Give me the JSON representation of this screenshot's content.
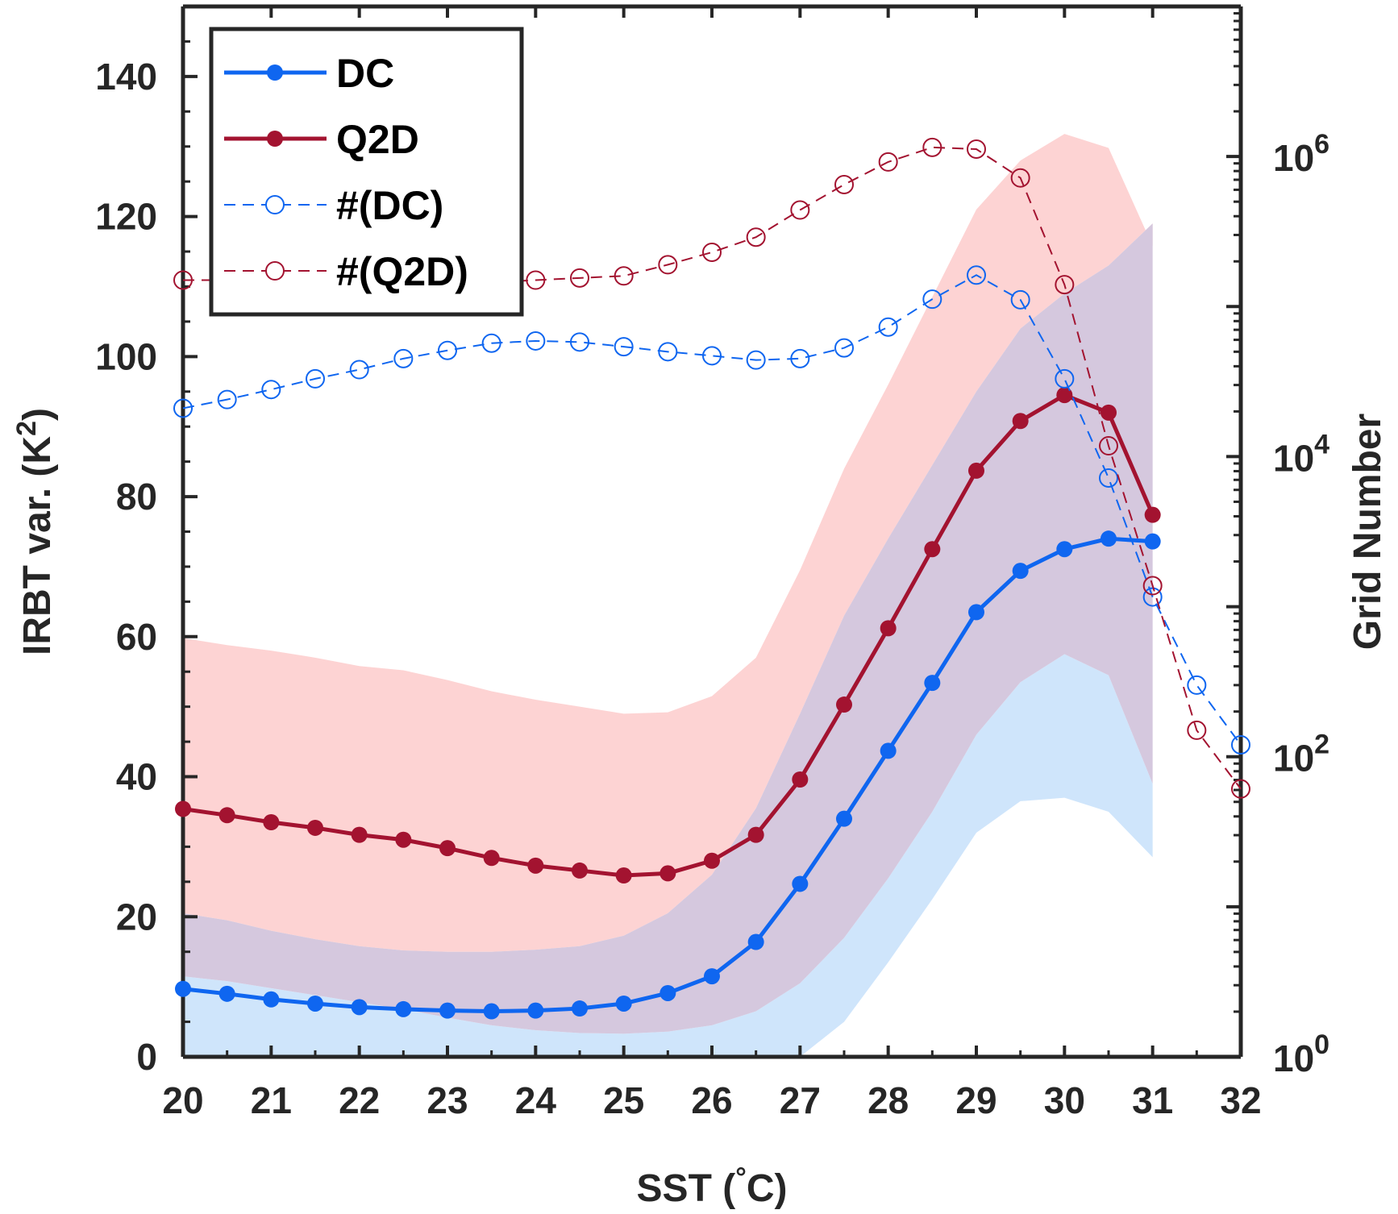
{
  "chart_data": {
    "type": "line",
    "title": "",
    "x_axis": {
      "label_prefix": "SST (",
      "label_degree": "°",
      "label_suffix": "C)",
      "range": [
        20,
        32
      ],
      "ticks": [
        "20",
        "21",
        "22",
        "23",
        "24",
        "25",
        "26",
        "27",
        "28",
        "29",
        "30",
        "31",
        "32"
      ]
    },
    "y_axis_left": {
      "label_text": "IRBT var. (K",
      "label_sup": "2",
      "label_close": ")",
      "range": [
        0,
        150
      ],
      "ticks": [
        "0",
        "20",
        "40",
        "60",
        "80",
        "100",
        "120",
        "140"
      ]
    },
    "y_axis_right": {
      "label": "Grid Number",
      "scale": "log",
      "range": [
        1,
        10000000
      ],
      "tick_base": "10",
      "tick_exponents": [
        "0",
        "2",
        "4",
        "6"
      ]
    },
    "x": [
      20,
      20.5,
      21,
      21.5,
      22,
      22.5,
      23,
      23.5,
      24,
      24.5,
      25,
      25.5,
      26,
      26.5,
      27,
      27.5,
      28,
      28.5,
      29,
      29.5,
      30,
      30.5,
      31
    ],
    "series": [
      {
        "name": "DC",
        "axis": "left",
        "color": "#0f66f0",
        "style": "solid-dot",
        "values": [
          9.7,
          9.0,
          8.2,
          7.6,
          7.1,
          6.8,
          6.6,
          6.5,
          6.6,
          6.9,
          7.6,
          9.1,
          11.5,
          16.4,
          24.7,
          34.0,
          43.7,
          53.4,
          63.5,
          69.4,
          72.5,
          74.0,
          73.6
        ],
        "band_upper": [
          11.5,
          10.8,
          9.8,
          8.8,
          7.8,
          6.8,
          5.6,
          4.5,
          3.8,
          3.4,
          3.3,
          3.6,
          4.5,
          6.5,
          10.5,
          17.0,
          25.5,
          35.0,
          46.0,
          53.5,
          57.5,
          54.5,
          39.0
        ],
        "band_lower": [
          0,
          0,
          0,
          0,
          0,
          0,
          0,
          0,
          0,
          0,
          0,
          0,
          0,
          0,
          0,
          5.0,
          13.5,
          22.5,
          32.0,
          36.5,
          37.0,
          35.0,
          28.5
        ],
        "band_top": [
          20.5,
          19.5,
          18.0,
          16.8,
          15.8,
          15.2,
          15.0,
          15.0,
          15.3,
          15.8,
          17.3,
          20.5,
          26.0,
          35.5,
          49.0,
          63.0,
          74.0,
          84.5,
          95.0,
          104.0,
          109.0,
          113.0,
          119.0
        ],
        "band_color": "#cfe5fb"
      },
      {
        "name": "Q2D",
        "axis": "left",
        "color": "#a31330",
        "style": "solid-dot",
        "values": [
          35.4,
          34.5,
          33.5,
          32.7,
          31.7,
          31.0,
          29.8,
          28.4,
          27.3,
          26.6,
          25.9,
          26.2,
          28.0,
          31.7,
          39.6,
          50.3,
          61.2,
          72.5,
          83.7,
          90.8,
          94.5,
          92.0,
          77.4
        ],
        "band_upper": [
          59.8,
          58.8,
          58.0,
          57.0,
          55.8,
          55.2,
          53.8,
          52.2,
          51.0,
          50.0,
          49.0,
          49.2,
          51.5,
          57.0,
          69.5,
          84.0,
          96.0,
          108.5,
          121.0,
          128.0,
          131.8,
          129.8,
          115.8
        ],
        "band_lower": [
          20.5,
          19.5,
          18.0,
          16.8,
          15.8,
          15.2,
          15.0,
          15.0,
          15.3,
          15.8,
          17.3,
          20.5,
          26.0,
          35.5,
          49.0,
          63.0,
          74.0,
          84.5,
          95.0,
          104.0,
          109.0,
          113.0,
          119.0
        ],
        "band_color": "#fdd3d3"
      },
      {
        "name": "#(DC)",
        "axis": "right",
        "color": "#0f66f0",
        "style": "dashed-open-circle",
        "x": [
          20,
          20.5,
          21,
          21.5,
          22,
          22.5,
          23,
          23.5,
          24,
          24.5,
          25,
          25.5,
          26,
          26.5,
          27,
          27.5,
          28,
          28.5,
          29,
          29.5,
          30,
          30.5,
          31,
          31.5,
          32
        ],
        "values": [
          21000,
          24000,
          28000,
          33000,
          38000,
          45000,
          51000,
          57000,
          59000,
          58000,
          54000,
          50000,
          47000,
          44000,
          45000,
          53000,
          73000,
          112000,
          162000,
          111000,
          33000,
          7200,
          1160,
          300,
          120
        ]
      },
      {
        "name": "#(Q2D)",
        "axis": "right",
        "color": "#a31330",
        "style": "dashed-open-circle",
        "x": [
          20,
          20.5,
          21,
          21.5,
          22,
          22.5,
          23,
          23.5,
          24,
          24.5,
          25,
          25.5,
          26,
          26.5,
          27,
          27.5,
          28,
          28.5,
          29,
          29.5,
          30,
          30.5,
          31,
          31.5,
          32
        ],
        "values": [
          150000,
          150000,
          150000,
          147000,
          145000,
          143000,
          145000,
          145000,
          150000,
          155000,
          160000,
          190000,
          230000,
          290000,
          440000,
          650000,
          920000,
          1150000,
          1120000,
          720000,
          140000,
          11800,
          1380,
          150,
          61
        ]
      }
    ],
    "legend": {
      "position": "top-left",
      "entries": [
        "DC",
        "Q2D",
        "#(DC)",
        "#(Q2D)"
      ]
    },
    "grid": false
  }
}
